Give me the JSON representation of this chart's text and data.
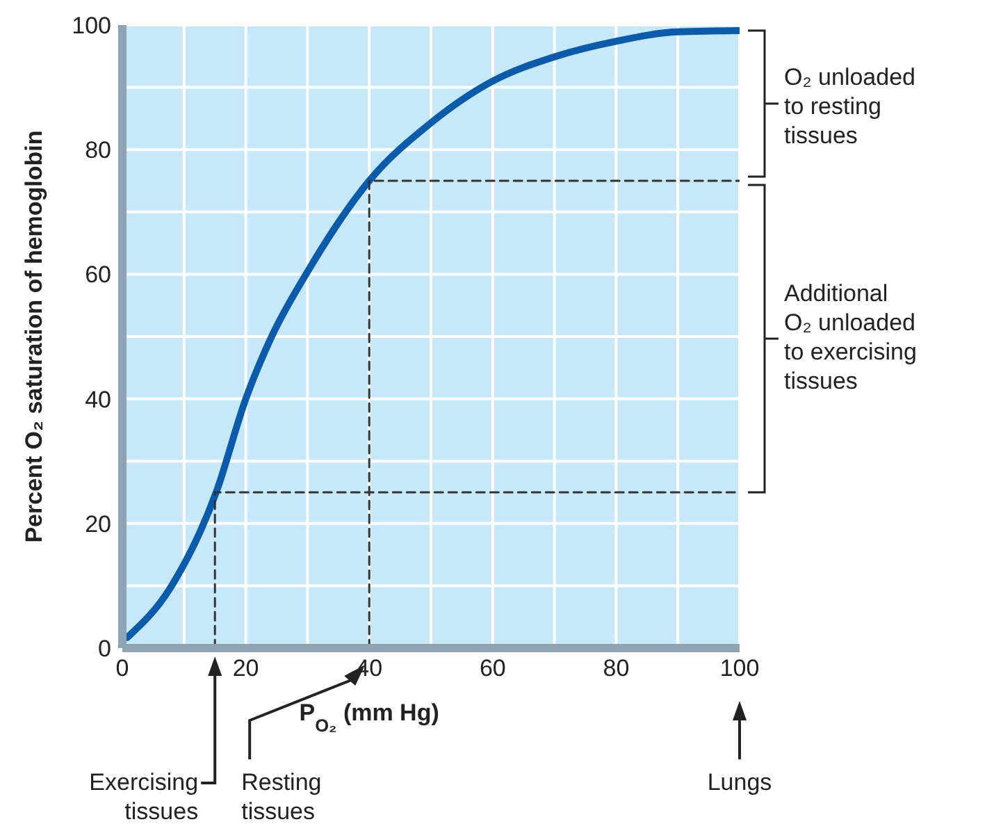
{
  "chart_data": {
    "type": "line",
    "xlabel": "P$_{O₂}$ (mm Hg)",
    "ylabel": "Percent O₂ saturation of hemoglobin",
    "xlim": [
      0,
      100
    ],
    "ylim": [
      0,
      100
    ],
    "xticks": [
      0,
      {
        "value": 10,
        "label": null
      },
      20,
      {
        "value": 30,
        "label": null
      },
      40,
      {
        "value": 50,
        "label": null
      },
      60,
      {
        "value": 70,
        "label": null
      },
      80,
      {
        "value": 90,
        "label": null
      },
      100
    ],
    "yticks": [
      0,
      {
        "value": 10,
        "label": null
      },
      20,
      {
        "value": 30,
        "label": null
      },
      40,
      {
        "value": 50,
        "label": null
      },
      60,
      {
        "value": 70,
        "label": null
      },
      80,
      {
        "value": 90,
        "label": null
      },
      100
    ],
    "grid": true,
    "marker": "none",
    "series": [
      {
        "color": "#0a5bab",
        "x": [
          0.8,
          7.8,
          15.2,
          20,
          24,
          30,
          40,
          50,
          60,
          70,
          80,
          90,
          100
        ],
        "values": [
          1.7,
          9.7,
          25,
          40,
          49.6,
          60.4,
          75,
          84.3,
          91,
          94.9,
          97.4,
          98.9,
          99.1
        ]
      },
      {
        "color": "#333333",
        "line_style": "dashed",
        "x": [
          15,
          15,
          100
        ],
        "values": [
          0,
          25,
          25
        ]
      },
      {
        "color": "#333333",
        "line_style": "dashed",
        "x": [
          40,
          40,
          100
        ],
        "values": [
          0,
          75,
          75
        ]
      }
    ],
    "annotations": [
      "O₂ unloaded to resting tissues",
      "Additional O₂ unloaded to exercising tissues",
      "Exercising tissues",
      "Resting tissues",
      "Lungs"
    ]
  }
}
